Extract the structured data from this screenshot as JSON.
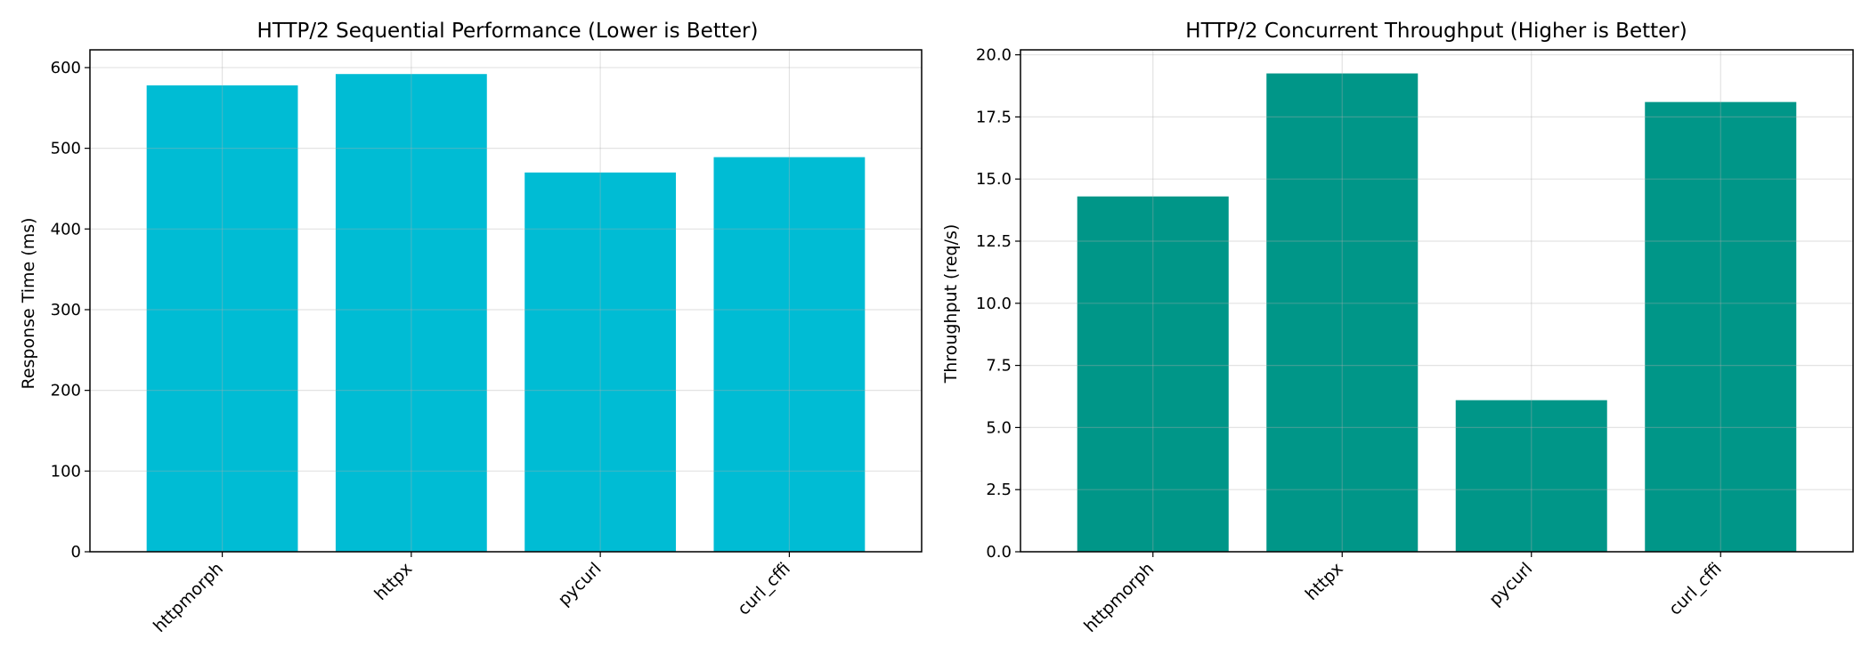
{
  "chart_data": [
    {
      "type": "bar",
      "title": "HTTP/2 Sequential Performance (Lower is Better)",
      "xlabel": "",
      "ylabel": "Response Time (ms)",
      "categories": [
        "httpmorph",
        "httpx",
        "pycurl",
        "curl_cffi"
      ],
      "values": [
        578,
        592,
        470,
        489
      ],
      "ylim": [
        0,
        622
      ],
      "yticks": [
        0,
        100,
        200,
        300,
        400,
        500,
        600
      ],
      "ytick_labels": [
        "0",
        "100",
        "200",
        "300",
        "400",
        "500",
        "600"
      ],
      "bar_color": "#00bcd4",
      "grid": true
    },
    {
      "type": "bar",
      "title": "HTTP/2 Concurrent Throughput (Higher is Better)",
      "xlabel": "",
      "ylabel": "Throughput (req/s)",
      "categories": [
        "httpmorph",
        "httpx",
        "pycurl",
        "curl_cffi"
      ],
      "values": [
        14.3,
        19.25,
        6.1,
        18.1
      ],
      "ylim": [
        0,
        20.2
      ],
      "yticks": [
        0,
        2.5,
        5,
        7.5,
        10,
        12.5,
        15,
        17.5,
        20
      ],
      "ytick_labels": [
        "0.0",
        "2.5",
        "5.0",
        "7.5",
        "10.0",
        "12.5",
        "15.0",
        "17.5",
        "20.0"
      ],
      "bar_color": "#009688",
      "grid": true
    }
  ]
}
